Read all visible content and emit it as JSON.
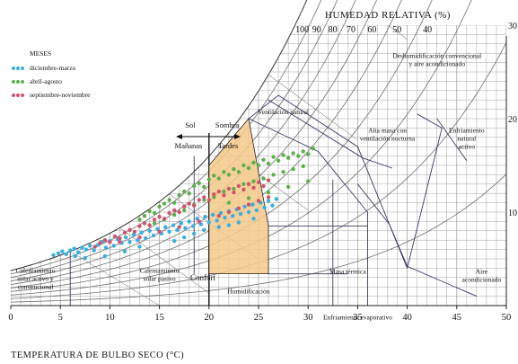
{
  "chart_data": {
    "type": "scatter",
    "title": "",
    "top_axis_title": "HUMEDAD RELATIVA (%)",
    "xlabel": "TEMPERATURA DE BULBO SECO (°C)",
    "xlim": [
      0,
      50
    ],
    "x_ticks": [
      0,
      5,
      10,
      15,
      20,
      25,
      30,
      35,
      40,
      45,
      50
    ],
    "ylim": [
      0,
      30
    ],
    "y_ticks": [
      10,
      20,
      30
    ],
    "rh_curves": [
      100,
      90,
      80,
      70,
      60,
      50,
      40,
      30,
      20,
      10
    ],
    "rh_labels": [
      "100",
      "90",
      "80",
      "70",
      "60",
      "50",
      "40"
    ],
    "grid": true,
    "legend": {
      "title": "MESES",
      "placement": "top-left",
      "entries": [
        {
          "name": "diciembre-marzo",
          "color": "#3aaee0"
        },
        {
          "name": "abril-agosto",
          "color": "#5fae4e"
        },
        {
          "name": "septiembre-noviembre",
          "color": "#d2536c"
        }
      ]
    },
    "comfort_zone": {
      "label": "Confort",
      "color": "#f6c98a",
      "polygon": [
        [
          20,
          3.4
        ],
        [
          26,
          3.4
        ],
        [
          26,
          8.5
        ],
        [
          24,
          20
        ],
        [
          20,
          15
        ]
      ]
    },
    "sun_shade": {
      "left_top": "Sol",
      "left_bottom": "Mañanas",
      "right_top": "Sombra",
      "right_bottom": "Tardes",
      "x": 20
    },
    "zone_labels": [
      {
        "text": [
          "Deshumidificación convencional",
          "y aire acondicionado"
        ],
        "x": 43,
        "y": 26.5
      },
      {
        "text": [
          "Ventilación natural"
        ],
        "x": 27.5,
        "y": 20.5
      },
      {
        "text": [
          "Alta masa con",
          "ventilación nocturna"
        ],
        "x": 38,
        "y": 18.5
      },
      {
        "text": [
          "Enfriamiento",
          "natural",
          "activo"
        ],
        "x": 46,
        "y": 18.5
      },
      {
        "text": [
          "Calentamiento",
          "solar activo y",
          "convencional"
        ],
        "x": 2.5,
        "y": 3.5
      },
      {
        "text": [
          "Calentamiento",
          "solar pasivo"
        ],
        "x": 15,
        "y": 3.5
      },
      {
        "text": [
          "Humidificación"
        ],
        "x": 24,
        "y": 1.3
      },
      {
        "text": [
          "Masa térmica"
        ],
        "x": 34,
        "y": 3.4
      },
      {
        "text": [
          "Enfriamiento evaporativo"
        ],
        "x": 35,
        "y": -1.5
      },
      {
        "text": [
          "Aire",
          "acondicionado"
        ],
        "x": 47.5,
        "y": 3.4
      }
    ],
    "series": [
      {
        "name": "diciembre-marzo",
        "color": "#3aaee0",
        "points": [
          [
            4.3,
            5.4
          ],
          [
            4.8,
            5.6
          ],
          [
            5.2,
            5.8
          ],
          [
            5.6,
            5.5
          ],
          [
            6.0,
            5.9
          ],
          [
            6.4,
            6.1
          ],
          [
            6.8,
            5.7
          ],
          [
            7.2,
            6.2
          ],
          [
            7.6,
            6.0
          ],
          [
            8.0,
            6.4
          ],
          [
            8.4,
            5.9
          ],
          [
            8.8,
            6.5
          ],
          [
            9.2,
            6.8
          ],
          [
            9.6,
            6.2
          ],
          [
            10.0,
            6.9
          ],
          [
            10.4,
            6.4
          ],
          [
            10.8,
            7.1
          ],
          [
            11.2,
            6.7
          ],
          [
            11.6,
            7.3
          ],
          [
            12.0,
            6.8
          ],
          [
            12.4,
            7.6
          ],
          [
            12.8,
            7.0
          ],
          [
            13.2,
            7.8
          ],
          [
            13.6,
            7.2
          ],
          [
            14.0,
            8.0
          ],
          [
            14.4,
            7.5
          ],
          [
            14.8,
            8.2
          ],
          [
            15.2,
            7.7
          ],
          [
            15.6,
            8.4
          ],
          [
            16.0,
            7.9
          ],
          [
            16.4,
            8.6
          ],
          [
            16.8,
            8.1
          ],
          [
            17.2,
            8.8
          ],
          [
            17.6,
            8.3
          ],
          [
            18.0,
            9.0
          ],
          [
            18.4,
            8.5
          ],
          [
            18.8,
            9.3
          ],
          [
            19.2,
            8.7
          ],
          [
            19.6,
            9.5
          ],
          [
            20.0,
            8.9
          ],
          [
            20.4,
            9.7
          ],
          [
            20.8,
            9.1
          ],
          [
            21.2,
            9.9
          ],
          [
            21.6,
            9.4
          ],
          [
            22.0,
            10.1
          ],
          [
            22.4,
            9.6
          ],
          [
            22.8,
            10.3
          ],
          [
            23.2,
            9.8
          ],
          [
            23.6,
            10.6
          ],
          [
            24.0,
            10.0
          ],
          [
            24.4,
            10.8
          ],
          [
            24.8,
            10.2
          ],
          [
            25.2,
            11.0
          ],
          [
            25.6,
            10.5
          ],
          [
            26.0,
            11.2
          ],
          [
            26.4,
            10.7
          ],
          [
            26.8,
            11.4
          ],
          [
            16.5,
            6.9
          ],
          [
            17.5,
            7.3
          ],
          [
            18.5,
            7.7
          ],
          [
            19.5,
            8.1
          ],
          [
            21.0,
            8.4
          ],
          [
            22.0,
            8.6
          ],
          [
            23.0,
            8.9
          ],
          [
            24.5,
            9.3
          ],
          [
            13.0,
            6.3
          ],
          [
            11.5,
            5.8
          ],
          [
            9.5,
            5.3
          ],
          [
            7.5,
            5.1
          ],
          [
            6.5,
            5.3
          ]
        ]
      },
      {
        "name": "abril-agosto",
        "color": "#5fae4e",
        "points": [
          [
            13.0,
            9.2
          ],
          [
            13.5,
            9.6
          ],
          [
            14.0,
            10.1
          ],
          [
            14.5,
            9.9
          ],
          [
            15.0,
            10.6
          ],
          [
            15.5,
            10.9
          ],
          [
            16.0,
            11.3
          ],
          [
            16.5,
            11.0
          ],
          [
            17.0,
            11.8
          ],
          [
            17.5,
            12.2
          ],
          [
            18.0,
            12.0
          ],
          [
            18.5,
            12.8
          ],
          [
            19.0,
            13.1
          ],
          [
            19.5,
            12.7
          ],
          [
            20.0,
            13.5
          ],
          [
            20.5,
            13.9
          ],
          [
            21.0,
            13.6
          ],
          [
            21.5,
            14.3
          ],
          [
            22.0,
            14.0
          ],
          [
            22.5,
            14.6
          ],
          [
            23.0,
            14.3
          ],
          [
            23.5,
            15.0
          ],
          [
            24.0,
            14.7
          ],
          [
            24.5,
            15.3
          ],
          [
            25.0,
            15.0
          ],
          [
            25.5,
            15.6
          ],
          [
            26.0,
            15.2
          ],
          [
            26.5,
            15.9
          ],
          [
            27.0,
            15.5
          ],
          [
            27.5,
            16.1
          ],
          [
            28.0,
            15.8
          ],
          [
            28.5,
            16.3
          ],
          [
            29.0,
            16.0
          ],
          [
            29.5,
            16.5
          ],
          [
            30.0,
            16.2
          ],
          [
            30.5,
            16.8
          ],
          [
            20.5,
            11.6
          ],
          [
            21.5,
            12.2
          ],
          [
            22.5,
            12.5
          ],
          [
            23.5,
            13.0
          ],
          [
            24.5,
            13.3
          ],
          [
            25.5,
            13.6
          ],
          [
            26.5,
            14.0
          ],
          [
            27.5,
            14.3
          ],
          [
            28.5,
            14.6
          ],
          [
            29.5,
            14.9
          ],
          [
            18.5,
            10.8
          ],
          [
            17.5,
            10.2
          ],
          [
            16.5,
            9.7
          ],
          [
            15.5,
            9.2
          ],
          [
            14.5,
            8.8
          ],
          [
            19.5,
            11.3
          ],
          [
            22.0,
            11.0
          ],
          [
            24.0,
            11.5
          ],
          [
            26.0,
            12.1
          ],
          [
            28.0,
            12.7
          ],
          [
            30.0,
            13.3
          ]
        ]
      },
      {
        "name": "septiembre-noviembre",
        "color": "#d2536c",
        "points": [
          [
            8.5,
            6.3
          ],
          [
            9.0,
            6.7
          ],
          [
            9.5,
            7.0
          ],
          [
            10.0,
            6.8
          ],
          [
            10.5,
            7.4
          ],
          [
            11.0,
            7.2
          ],
          [
            11.5,
            7.8
          ],
          [
            12.0,
            8.1
          ],
          [
            12.5,
            7.9
          ],
          [
            13.0,
            8.5
          ],
          [
            13.5,
            8.8
          ],
          [
            14.0,
            8.6
          ],
          [
            14.5,
            9.2
          ],
          [
            15.0,
            9.5
          ],
          [
            15.5,
            9.3
          ],
          [
            16.0,
            9.9
          ],
          [
            16.5,
            10.2
          ],
          [
            17.0,
            10.0
          ],
          [
            17.5,
            10.6
          ],
          [
            18.0,
            10.9
          ],
          [
            18.5,
            10.7
          ],
          [
            19.0,
            11.3
          ],
          [
            19.5,
            11.6
          ],
          [
            20.0,
            11.3
          ],
          [
            20.5,
            11.9
          ],
          [
            21.0,
            12.2
          ],
          [
            21.5,
            11.8
          ],
          [
            22.0,
            12.5
          ],
          [
            22.5,
            12.1
          ],
          [
            23.0,
            12.8
          ],
          [
            23.5,
            12.4
          ],
          [
            24.0,
            13.0
          ],
          [
            24.5,
            12.6
          ],
          [
            25.0,
            13.2
          ],
          [
            25.5,
            12.8
          ],
          [
            26.0,
            13.4
          ],
          [
            21.0,
            9.6
          ],
          [
            22.0,
            10.0
          ],
          [
            23.0,
            10.4
          ],
          [
            24.0,
            10.8
          ],
          [
            25.0,
            11.2
          ],
          [
            26.0,
            11.6
          ],
          [
            19.0,
            9.0
          ],
          [
            17.0,
            8.4
          ],
          [
            15.0,
            7.9
          ],
          [
            13.0,
            7.3
          ],
          [
            11.0,
            6.8
          ]
        ]
      }
    ]
  }
}
